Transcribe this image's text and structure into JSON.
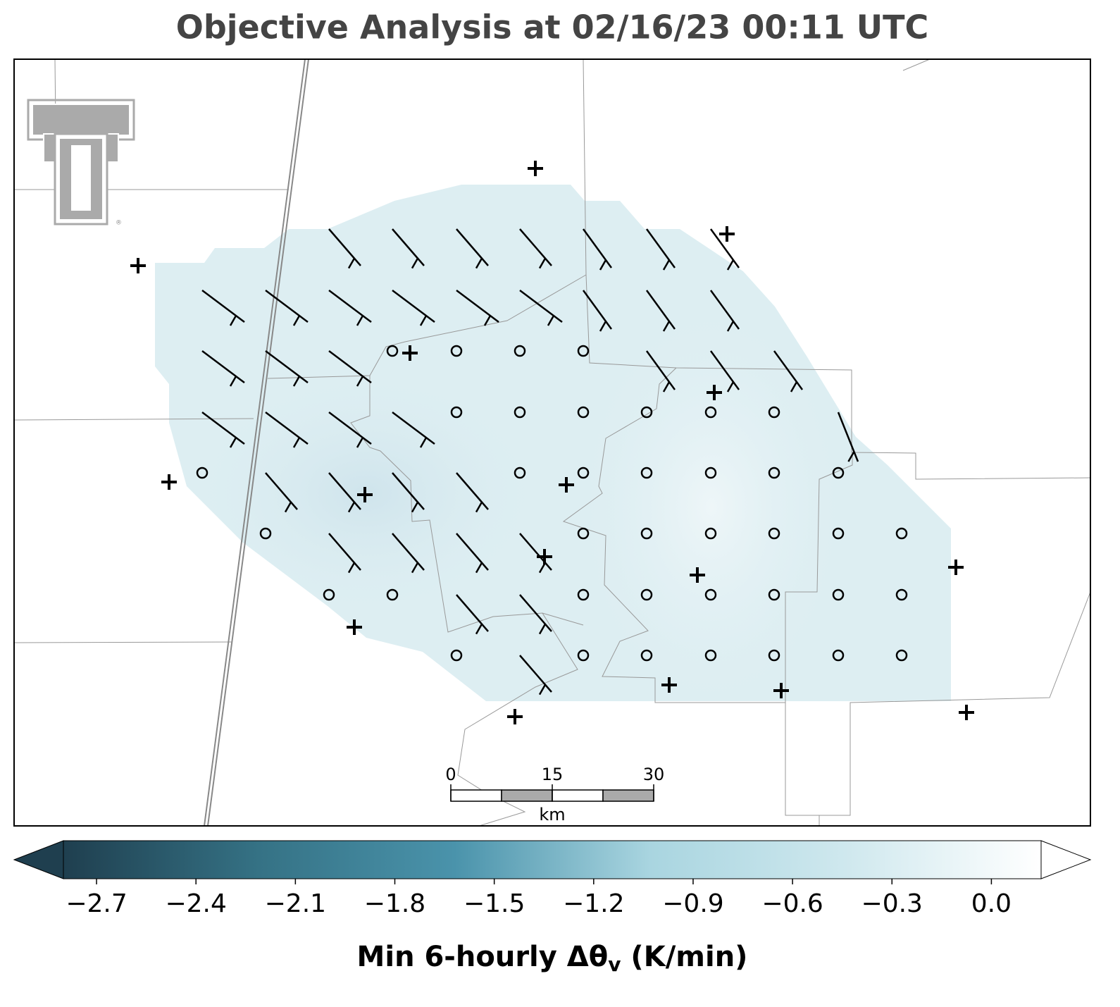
{
  "title": "Objective Analysis at 02/16/23 00:11 UTC",
  "scale_bar": {
    "ticks": [
      0,
      15,
      30
    ],
    "unit": "km"
  },
  "colorbar": {
    "clim": [
      -2.8,
      0.15
    ],
    "colors": [
      "#1f3f4f",
      "#357285",
      "#4a93ab",
      "#a9d5e0",
      "#cfe8ee",
      "#ffffff"
    ],
    "ticks": [
      {
        "value": -2.7,
        "label": "−2.7"
      },
      {
        "value": -2.4,
        "label": "−2.4"
      },
      {
        "value": -2.1,
        "label": "−2.1"
      },
      {
        "value": -1.8,
        "label": "−1.8"
      },
      {
        "value": -1.5,
        "label": "−1.5"
      },
      {
        "value": -1.2,
        "label": "−1.2"
      },
      {
        "value": -0.9,
        "label": "−0.9"
      },
      {
        "value": -0.6,
        "label": "−0.6"
      },
      {
        "value": -0.3,
        "label": "−0.3"
      },
      {
        "value": 0,
        "label": "0.0"
      }
    ],
    "label": "Min 6-hourly Δθ",
    "label_sub": "v",
    "label_unit": " (K/min)"
  }
}
